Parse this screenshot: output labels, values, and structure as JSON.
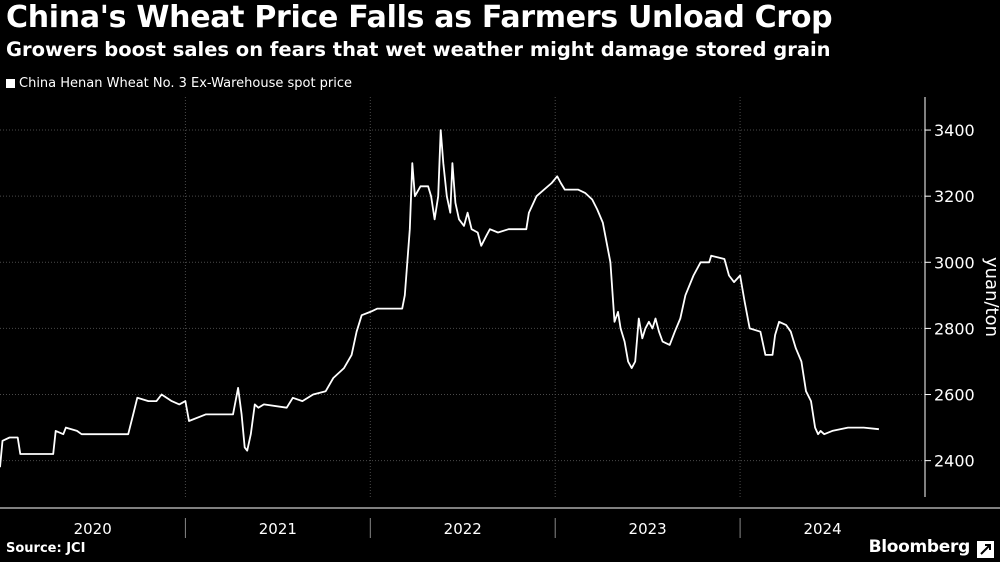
{
  "header": {
    "title": "China's Wheat Price Falls as Farmers Unload Crop",
    "subtitle": "Growers boost sales on fears that wet weather might damage stored grain"
  },
  "footer": {
    "source": "Source: JCI",
    "brand": "Bloomberg"
  },
  "colors": {
    "background": "#000000",
    "line": "#ffffff",
    "grid": "#4a4a4a",
    "text": "#ffffff"
  },
  "chart_data": {
    "type": "line",
    "title": "China's Wheat Price Falls as Farmers Unload Crop",
    "subtitle": "Growers boost sales on fears that wet weather might damage stored grain",
    "ylabel": "yuan/ton",
    "xlabel": "",
    "ylim": [
      2290,
      3500
    ],
    "xlim": [
      "2020-01-01",
      "2024-12-31"
    ],
    "y_ticks": [
      2400,
      2600,
      2800,
      3000,
      3200,
      3400
    ],
    "x_tick_labels": [
      "2020",
      "2021",
      "2022",
      "2023",
      "2024"
    ],
    "legend": {
      "position": "top-left",
      "entries": [
        "China Henan Wheat No. 3 Ex-Warehouse spot price"
      ]
    },
    "grid": true,
    "y_axis_side": "right",
    "series": [
      {
        "name": "China Henan Wheat No. 3 Ex-Warehouse spot price",
        "points": [
          [
            "2020-01-01",
            2380
          ],
          [
            "2020-01-06",
            2460
          ],
          [
            "2020-01-20",
            2470
          ],
          [
            "2020-02-05",
            2470
          ],
          [
            "2020-02-10",
            2420
          ],
          [
            "2020-04-15",
            2420
          ],
          [
            "2020-04-20",
            2490
          ],
          [
            "2020-05-05",
            2480
          ],
          [
            "2020-05-10",
            2500
          ],
          [
            "2020-06-01",
            2490
          ],
          [
            "2020-06-10",
            2480
          ],
          [
            "2020-09-10",
            2480
          ],
          [
            "2020-09-20",
            2540
          ],
          [
            "2020-09-28",
            2590
          ],
          [
            "2020-10-20",
            2580
          ],
          [
            "2020-11-05",
            2580
          ],
          [
            "2020-11-15",
            2600
          ],
          [
            "2020-12-05",
            2580
          ],
          [
            "2020-12-20",
            2570
          ],
          [
            "2021-01-01",
            2580
          ],
          [
            "2021-01-08",
            2520
          ],
          [
            "2021-02-10",
            2540
          ],
          [
            "2021-04-05",
            2540
          ],
          [
            "2021-04-15",
            2620
          ],
          [
            "2021-04-22",
            2540
          ],
          [
            "2021-04-28",
            2440
          ],
          [
            "2021-05-03",
            2430
          ],
          [
            "2021-05-10",
            2480
          ],
          [
            "2021-05-18",
            2570
          ],
          [
            "2021-05-25",
            2560
          ],
          [
            "2021-06-05",
            2570
          ],
          [
            "2021-07-20",
            2560
          ],
          [
            "2021-08-01",
            2590
          ],
          [
            "2021-08-20",
            2580
          ],
          [
            "2021-09-10",
            2600
          ],
          [
            "2021-10-05",
            2610
          ],
          [
            "2021-10-20",
            2650
          ],
          [
            "2021-11-10",
            2680
          ],
          [
            "2021-11-25",
            2720
          ],
          [
            "2021-12-05",
            2790
          ],
          [
            "2021-12-15",
            2840
          ],
          [
            "2022-01-01",
            2850
          ],
          [
            "2022-01-15",
            2860
          ],
          [
            "2022-02-01",
            2860
          ],
          [
            "2022-03-05",
            2860
          ],
          [
            "2022-03-10",
            2900
          ],
          [
            "2022-03-15",
            3000
          ],
          [
            "2022-03-20",
            3100
          ],
          [
            "2022-03-25",
            3300
          ],
          [
            "2022-03-30",
            3200
          ],
          [
            "2022-04-10",
            3230
          ],
          [
            "2022-04-25",
            3230
          ],
          [
            "2022-05-01",
            3200
          ],
          [
            "2022-05-08",
            3130
          ],
          [
            "2022-05-15",
            3200
          ],
          [
            "2022-05-20",
            3400
          ],
          [
            "2022-05-25",
            3300
          ],
          [
            "2022-06-01",
            3200
          ],
          [
            "2022-06-08",
            3150
          ],
          [
            "2022-06-12",
            3300
          ],
          [
            "2022-06-18",
            3180
          ],
          [
            "2022-06-25",
            3130
          ],
          [
            "2022-07-05",
            3110
          ],
          [
            "2022-07-12",
            3150
          ],
          [
            "2022-07-20",
            3100
          ],
          [
            "2022-08-01",
            3090
          ],
          [
            "2022-08-08",
            3050
          ],
          [
            "2022-08-18",
            3080
          ],
          [
            "2022-08-25",
            3100
          ],
          [
            "2022-09-10",
            3090
          ],
          [
            "2022-10-01",
            3100
          ],
          [
            "2022-10-20",
            3100
          ],
          [
            "2022-11-05",
            3100
          ],
          [
            "2022-11-10",
            3150
          ],
          [
            "2022-11-25",
            3200
          ],
          [
            "2022-12-10",
            3220
          ],
          [
            "2022-12-25",
            3240
          ],
          [
            "2023-01-05",
            3260
          ],
          [
            "2023-01-12",
            3240
          ],
          [
            "2023-01-20",
            3220
          ],
          [
            "2023-02-15",
            3220
          ],
          [
            "2023-03-01",
            3210
          ],
          [
            "2023-03-15",
            3190
          ],
          [
            "2023-03-25",
            3160
          ],
          [
            "2023-04-05",
            3120
          ],
          [
            "2023-04-20",
            3000
          ],
          [
            "2023-04-28",
            2820
          ],
          [
            "2023-05-05",
            2850
          ],
          [
            "2023-05-10",
            2800
          ],
          [
            "2023-05-18",
            2760
          ],
          [
            "2023-05-25",
            2700
          ],
          [
            "2023-06-01",
            2680
          ],
          [
            "2023-06-08",
            2700
          ],
          [
            "2023-06-15",
            2830
          ],
          [
            "2023-06-22",
            2770
          ],
          [
            "2023-06-28",
            2800
          ],
          [
            "2023-07-05",
            2820
          ],
          [
            "2023-07-12",
            2800
          ],
          [
            "2023-07-18",
            2830
          ],
          [
            "2023-07-25",
            2790
          ],
          [
            "2023-08-01",
            2760
          ],
          [
            "2023-08-15",
            2750
          ],
          [
            "2023-08-25",
            2790
          ],
          [
            "2023-09-05",
            2830
          ],
          [
            "2023-09-15",
            2900
          ],
          [
            "2023-10-01",
            2960
          ],
          [
            "2023-10-15",
            3000
          ],
          [
            "2023-11-01",
            3000
          ],
          [
            "2023-11-05",
            3020
          ],
          [
            "2023-12-01",
            3010
          ],
          [
            "2023-12-10",
            2960
          ],
          [
            "2023-12-20",
            2940
          ],
          [
            "2024-01-01",
            2960
          ],
          [
            "2024-01-10",
            2880
          ],
          [
            "2024-01-20",
            2800
          ],
          [
            "2024-02-10",
            2790
          ],
          [
            "2024-02-20",
            2720
          ],
          [
            "2024-03-05",
            2720
          ],
          [
            "2024-03-10",
            2780
          ],
          [
            "2024-03-18",
            2820
          ],
          [
            "2024-04-01",
            2810
          ],
          [
            "2024-04-10",
            2790
          ],
          [
            "2024-04-20",
            2740
          ],
          [
            "2024-05-01",
            2700
          ],
          [
            "2024-05-10",
            2610
          ],
          [
            "2024-05-20",
            2580
          ],
          [
            "2024-05-28",
            2500
          ],
          [
            "2024-06-03",
            2480
          ],
          [
            "2024-06-08",
            2490
          ],
          [
            "2024-06-15",
            2480
          ],
          [
            "2024-07-01",
            2490
          ],
          [
            "2024-08-01",
            2500
          ],
          [
            "2024-09-01",
            2500
          ],
          [
            "2024-10-01",
            2495
          ]
        ]
      }
    ]
  }
}
